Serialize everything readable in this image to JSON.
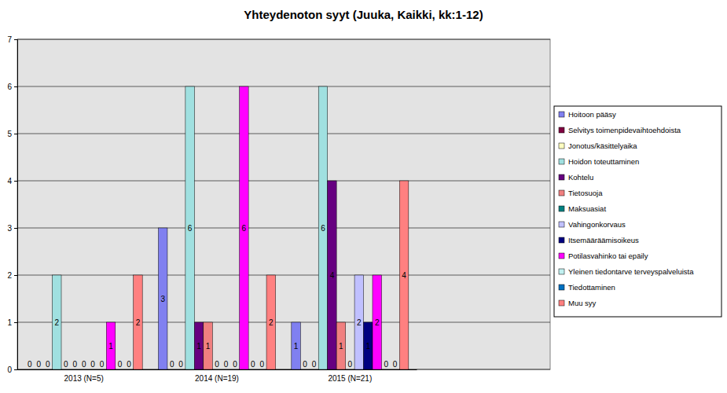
{
  "chart_data": {
    "type": "bar",
    "title": "Yhteydenoton syyt (Juuka, Kaikki, kk:1-12)",
    "categories": [
      "2013 (N=5)",
      "2014 (N=19)",
      "2015 (N=21)"
    ],
    "series": [
      {
        "name": "Hoitoon pääsy",
        "color": "#8080f0",
        "values": [
          0,
          3,
          1
        ]
      },
      {
        "name": "Selvitys toimenpidevaihtoehdoista",
        "color": "#800040",
        "values": [
          0,
          0,
          0
        ]
      },
      {
        "name": "Jonotus/käsittelyaika",
        "color": "#ffffc0",
        "values": [
          0,
          0,
          0
        ]
      },
      {
        "name": "Hoidon toteuttaminen",
        "color": "#a0e0e0",
        "values": [
          2,
          6,
          6
        ]
      },
      {
        "name": "Kohtelu",
        "color": "#660080",
        "values": [
          0,
          1,
          4
        ]
      },
      {
        "name": "Tietosuoja",
        "color": "#f08080",
        "values": [
          0,
          1,
          1
        ]
      },
      {
        "name": "Maksuasiat",
        "color": "#008080",
        "values": [
          0,
          0,
          0
        ]
      },
      {
        "name": "Vahingonkorvaus",
        "color": "#c0c0ff",
        "values": [
          0,
          0,
          2
        ]
      },
      {
        "name": "Itsemääräämisoikeus",
        "color": "#000080",
        "values": [
          0,
          0,
          1
        ]
      },
      {
        "name": "Potilasvahinko tai epäily",
        "color": "#ff00ff",
        "values": [
          1,
          6,
          2
        ]
      },
      {
        "name": "Yleinen tiedontarve terveyspalveluista",
        "color": "#c0f0f0",
        "values": [
          0,
          0,
          0
        ]
      },
      {
        "name": "Tiedottaminen",
        "color": "#0070c0",
        "values": [
          0,
          0,
          0
        ]
      },
      {
        "name": "Muu syy",
        "color": "#ff8080",
        "values": [
          2,
          2,
          4
        ]
      }
    ],
    "ylim": [
      0,
      7
    ],
    "yticks": [
      0,
      1,
      2,
      3,
      4,
      5,
      6,
      7
    ],
    "grid": true,
    "legend": "right",
    "data_labels": true
  }
}
